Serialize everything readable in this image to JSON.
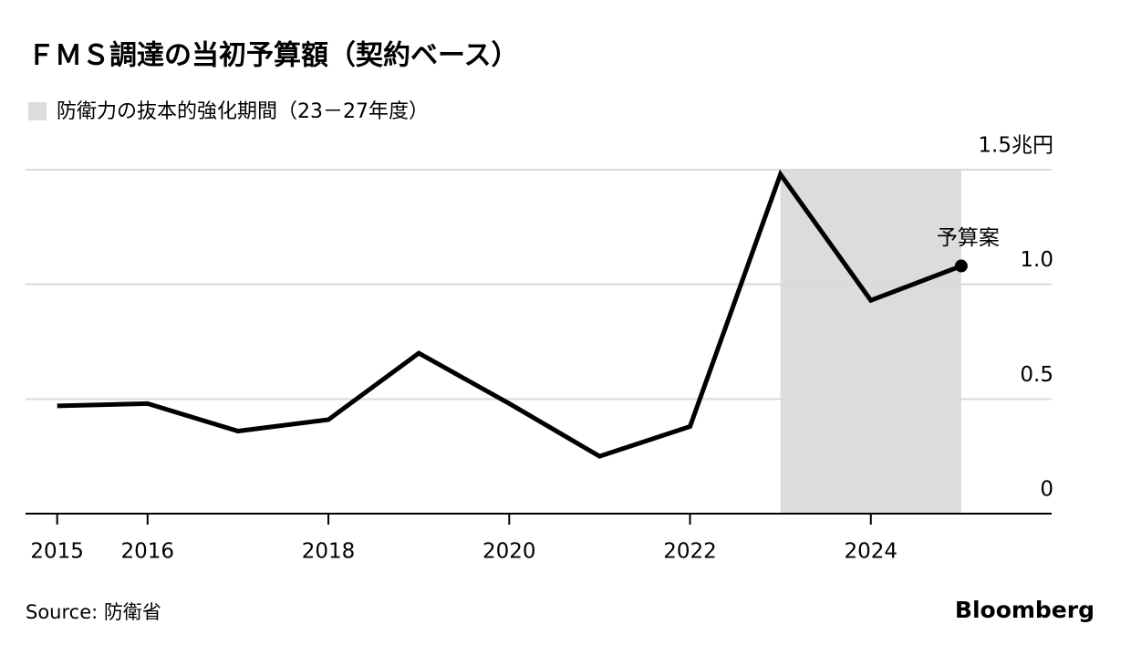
{
  "chart_data": {
    "type": "line",
    "title": "ＦＭＳ調達の当初予算額（契約ベース）",
    "shade": {
      "label": "防衛力の抜本的強化期間（23－27年度）",
      "x": [
        2023,
        2025
      ],
      "color": "#dcdcdc"
    },
    "x": [
      2015,
      2016,
      2017,
      2018,
      2019,
      2020,
      2021,
      2022,
      2023,
      2024,
      2025
    ],
    "values": [
      0.47,
      0.48,
      0.36,
      0.41,
      0.7,
      0.48,
      0.25,
      0.38,
      1.48,
      0.93,
      1.08
    ],
    "color": "#000000",
    "annotation": "予算案",
    "xlim": [
      2014.65,
      2026.0
    ],
    "xticks": [
      2015,
      2016,
      2018,
      2020,
      2022,
      2024
    ],
    "ylim": [
      0,
      1.5
    ],
    "yticks": [
      0,
      0.5,
      {
        "value": 1,
        "label": "1.0"
      },
      {
        "value": 1.5,
        "label": "1.5兆円"
      }
    ],
    "grid": true,
    "source": "Source: 防衛省",
    "brand": "Bloomberg"
  }
}
